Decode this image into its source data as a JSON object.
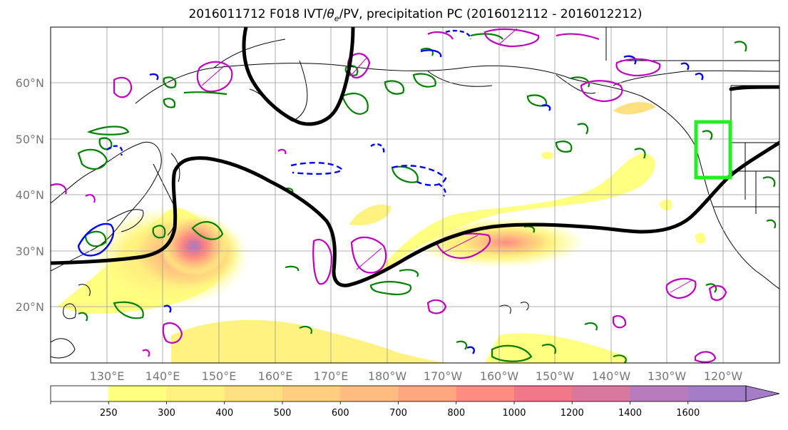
{
  "title": {
    "prefix": "2016011712 F018 IVT/",
    "theta_symbol": "θ",
    "theta_sub": "e",
    "suffix": "/PV, precipitation PC (2016012112 - 2016012212)"
  },
  "map": {
    "lat_labels": [
      "60°N",
      "50°N",
      "40°N",
      "30°N",
      "20°N"
    ],
    "lon_labels": [
      "130°E",
      "140°E",
      "150°E",
      "160°E",
      "170°E",
      "180°W",
      "170°W",
      "160°W",
      "150°W",
      "140°W",
      "130°W",
      "120°W"
    ],
    "region": {
      "lon_min": 120,
      "lon_max": 250,
      "lat_min": 10,
      "lat_max": 70
    },
    "target_box": {
      "lon_min": 232,
      "lon_max": 238,
      "lat_min": 43,
      "lat_max": 53
    },
    "colors": {
      "coast": "#000000",
      "grid": "#999999",
      "pv": "#000000",
      "theta_e": "#008000",
      "negative": "#0000ff",
      "magenta": "#bf00bf",
      "box": "#22ee22"
    }
  },
  "colorbar": {
    "ticks": [
      "250",
      "300",
      "400",
      "500",
      "600",
      "700",
      "800",
      "1000",
      "1200",
      "1400",
      "1600"
    ],
    "colors": [
      "#ffffff",
      "#ffff80",
      "#fff280",
      "#ffe080",
      "#ffce80",
      "#ffbc80",
      "#ffa880",
      "#ff8c80",
      "#f07888",
      "#d8789c",
      "#b87cbc",
      "#a47cc8"
    ]
  }
}
